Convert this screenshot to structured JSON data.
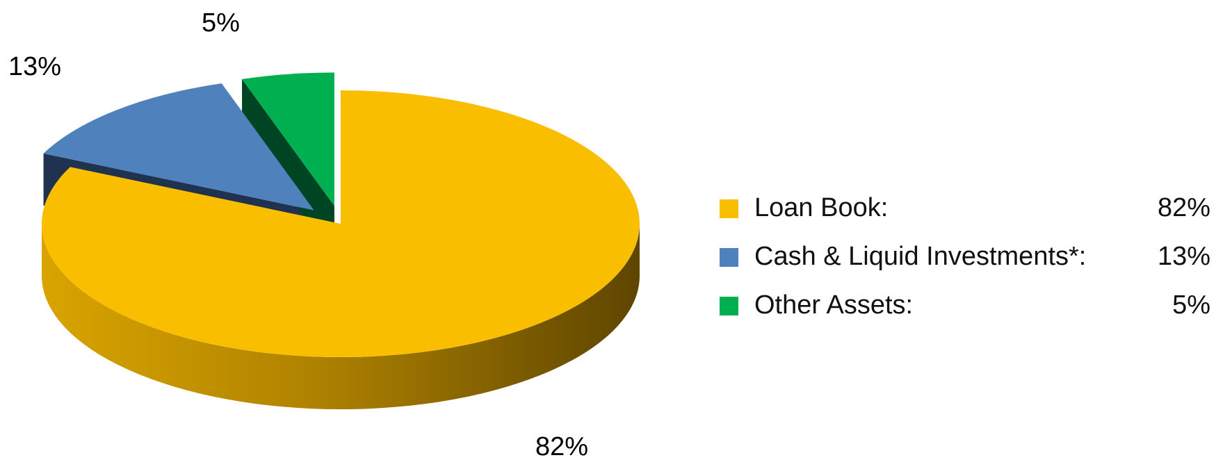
{
  "chart_data": {
    "type": "pie",
    "slices": [
      {
        "label": "Loan Book:",
        "value": 82,
        "value_label": "82%",
        "color": "#F9BE00",
        "side_color": "#6C4E00",
        "exploded": false
      },
      {
        "label": "Cash & Liquid Investments*:",
        "value": 13,
        "value_label": "13%",
        "color": "#4F81BD",
        "side_color": "#1F3350",
        "exploded": true
      },
      {
        "label": "Other Assets:",
        "value": 5,
        "value_label": "5%",
        "color": "#00B050",
        "side_color": "#004523",
        "exploded": true
      }
    ],
    "legend_position": "right",
    "three_d": true
  }
}
